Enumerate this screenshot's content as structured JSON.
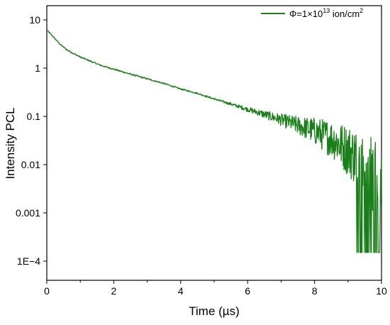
{
  "chart_data": {
    "type": "line",
    "xlabel": "Time (µs)",
    "ylabel": "Intensity PCL",
    "xlim": [
      0,
      10
    ],
    "ylim": [
      0.0001,
      20
    ],
    "yscale": "log",
    "grid": false,
    "legend_position": "top-right",
    "x_ticks": [
      "0",
      "2",
      "4",
      "6",
      "8",
      "10"
    ],
    "y_ticks": [
      "10",
      "1",
      "0.1",
      "0.01",
      "0.001",
      "1E−4"
    ],
    "series": [
      {
        "legend_prefix": "Φ=1×10",
        "legend_sup": "13",
        "legend_mid": " ion/cm",
        "legend_sup2": "2",
        "color": "#1a7f1a",
        "x": [
          0.0,
          0.1,
          0.2,
          0.3,
          0.4,
          0.6,
          0.8,
          1.0,
          1.3,
          1.6,
          2.0,
          2.5,
          3.0,
          3.5,
          4.0,
          4.5,
          5.0,
          5.5,
          6.0,
          6.5,
          7.0,
          7.5,
          8.0,
          8.3,
          8.6,
          8.8,
          9.0,
          9.2,
          9.4,
          9.6,
          9.8,
          10.0
        ],
        "y": [
          6.2,
          5.2,
          4.4,
          3.7,
          3.1,
          2.4,
          2.0,
          1.7,
          1.4,
          1.15,
          0.95,
          0.75,
          0.6,
          0.48,
          0.37,
          0.3,
          0.23,
          0.18,
          0.14,
          0.11,
          0.085,
          0.065,
          0.05,
          0.04,
          0.032,
          0.025,
          0.02,
          0.015,
          0.01,
          0.008,
          0.006,
          0.004
        ]
      }
    ]
  }
}
